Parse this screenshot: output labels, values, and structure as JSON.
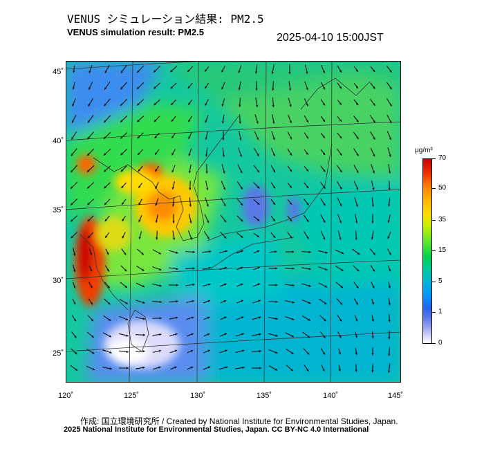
{
  "header": {
    "title_jp": "VENUS シミュレーション結果: PM2.5",
    "title_en": "VENUS simulation result: PM2.5",
    "timestamp": "2025-04-10 15:00JST"
  },
  "map": {
    "lat_labels": [
      "45˚",
      "40˚",
      "35˚",
      "30˚",
      "25˚"
    ],
    "lon_labels": [
      "120˚",
      "125˚",
      "130˚",
      "135˚",
      "140˚",
      "145˚"
    ]
  },
  "colorbar": {
    "unit": "μg/m³",
    "labels": [
      "70",
      "50",
      "35",
      "15",
      "5",
      "1",
      "0"
    ],
    "colors": [
      "#c80000",
      "#ff7800",
      "#ffdc00",
      "#50e632",
      "#00b4dc",
      "#2864f0",
      "#ffffff"
    ]
  },
  "footer": {
    "credit": "作成: 国立環境研究所 / Created by National Institute for Environmental Studies, Japan.",
    "copyright": "2025 National Institute for Environmental Studies, Japan. CC BY-NC 4.0 International"
  }
}
